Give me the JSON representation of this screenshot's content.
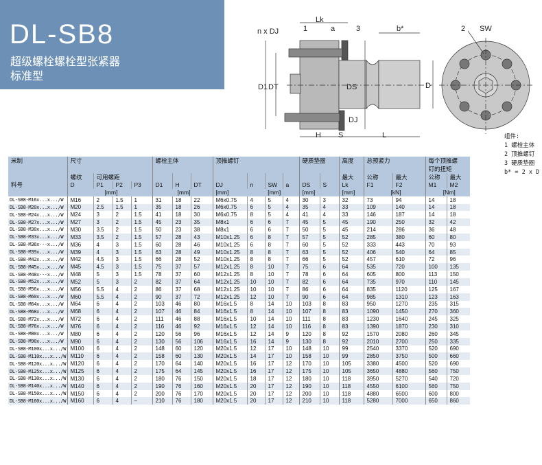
{
  "header": {
    "title": "DL-SB8",
    "subtitle1": "超级螺栓螺栓型张紧器",
    "subtitle2": "标准型",
    "accent": "#6d91b6"
  },
  "drawing": {
    "labels": {
      "lk": "Lk",
      "n_dj": "n x DJ",
      "one": "1",
      "a": "a",
      "three": "3",
      "bstar": "b*",
      "d1": "D1",
      "dt": "DT",
      "ds": "DS",
      "d": "D",
      "dj": "DJ",
      "h": "H",
      "s": "S",
      "l": "L",
      "two": "2",
      "sw": "SW"
    }
  },
  "legend": {
    "title": "组件:",
    "items": [
      "1 螺栓主体",
      "2 顶推螺钉",
      "3 硬质垫圈",
      "b* = 2 x D"
    ]
  },
  "table": {
    "groups": {
      "metric": "米制",
      "size": "尺寸",
      "body": "螺栓主体",
      "push": "顶推螺钉",
      "washer": "硬质垫圈",
      "height": "高度",
      "force": "总预紧力",
      "torque1": "每个顶推螺",
      "torque2": "钉的扭矩"
    },
    "sub": {
      "part": "料号",
      "thread": "螺纹",
      "pitch": "可用螺距",
      "max": "最大",
      "nominal": "公称",
      "max2": "最大",
      "nom2": "公称",
      "max3": "最大"
    },
    "cols": [
      "D",
      "P1",
      "P2",
      "P3",
      "D1",
      "H",
      "DT",
      "DJ",
      "n",
      "SW",
      "a",
      "DS",
      "S",
      "Lk",
      "F1",
      "F2",
      "M1",
      "M2"
    ],
    "units": {
      "mm1": "[mm]",
      "mm2": "[mm]",
      "mm3": "[mm]",
      "mm4": "[mm]",
      "mm5": "[mm]",
      "mm6": "[mm]",
      "kn": "[kN]",
      "nm": "[Nm]"
    },
    "rows": [
      [
        "DL-SB8-M16x...x.../W",
        "M16",
        "2",
        "1.5",
        "1",
        "31",
        "18",
        "22",
        "M6x0.75",
        "4",
        "5",
        "4",
        "30",
        "3",
        "32",
        "73",
        "94",
        "14",
        "18"
      ],
      [
        "DL-SB8-M20x...x.../W",
        "M20",
        "2.5",
        "1.5",
        "1",
        "35",
        "18",
        "26",
        "M6x0.75",
        "6",
        "5",
        "4",
        "35",
        "4",
        "33",
        "109",
        "140",
        "14",
        "18"
      ],
      [
        "DL-SB8-M24x...x.../W",
        "M24",
        "3",
        "2",
        "1.5",
        "41",
        "18",
        "30",
        "M6x0.75",
        "8",
        "5",
        "4",
        "41",
        "4",
        "33",
        "146",
        "187",
        "14",
        "18"
      ],
      [
        "DL-SB8-M27x...x.../W",
        "M27",
        "3",
        "2",
        "1.5",
        "45",
        "23",
        "35",
        "M8x1",
        "6",
        "6",
        "7",
        "45",
        "5",
        "45",
        "190",
        "250",
        "32",
        "42"
      ],
      [
        "DL-SB8-M30x...x.../W",
        "M30",
        "3.5",
        "2",
        "1.5",
        "50",
        "23",
        "38",
        "M8x1",
        "6",
        "6",
        "7",
        "50",
        "5",
        "45",
        "214",
        "286",
        "36",
        "48"
      ],
      [
        "DL-SB8-M33x...x.../W",
        "M33",
        "3.5",
        "2",
        "1.5",
        "57",
        "28",
        "43",
        "M10x1.25",
        "6",
        "8",
        "7",
        "57",
        "5",
        "52",
        "285",
        "380",
        "60",
        "80"
      ],
      [
        "DL-SB8-M36x···x.../W",
        "M36",
        "4",
        "3",
        "1.5",
        "60",
        "28",
        "46",
        "M10x1.25",
        "6",
        "8",
        "7",
        "60",
        "5",
        "52",
        "333",
        "443",
        "70",
        "93"
      ],
      [
        "DL-SB8-M39x...x.../W",
        "M39",
        "4",
        "3",
        "1.5",
        "63",
        "28",
        "49",
        "M10x1.25",
        "8",
        "8",
        "7",
        "63",
        "5",
        "52",
        "406",
        "540",
        "64",
        "85"
      ],
      [
        "DL-SB8-M42x...x.../W",
        "M42",
        "4.5",
        "3",
        "1.5",
        "66",
        "28",
        "52",
        "M10x1.25",
        "8",
        "8",
        "7",
        "66",
        "5",
        "52",
        "457",
        "610",
        "72",
        "96"
      ],
      [
        "DL-SB8-M45x...x.../W",
        "M45",
        "4.5",
        "3",
        "1.5",
        "75",
        "37",
        "57",
        "M12x1.25",
        "8",
        "10",
        "7",
        "75",
        "6",
        "64",
        "535",
        "720",
        "100",
        "135"
      ],
      [
        "DL-SB8-M48x···x.../W",
        "M48",
        "5",
        "3",
        "1.5",
        "78",
        "37",
        "60",
        "M12x1.25",
        "8",
        "10",
        "7",
        "78",
        "6",
        "64",
        "605",
        "800",
        "113",
        "150"
      ],
      [
        "DL-SB8-M52x...x.../W",
        "M52",
        "5",
        "3",
        "2",
        "82",
        "37",
        "64",
        "M12x1.25",
        "10",
        "10",
        "7",
        "82",
        "6",
        "64",
        "735",
        "970",
        "110",
        "145"
      ],
      [
        "DL-SB8-M56x...x.../W",
        "M56",
        "5.5",
        "4",
        "2",
        "86",
        "37",
        "68",
        "M12x1.25",
        "10",
        "10",
        "7",
        "86",
        "6",
        "64",
        "835",
        "1120",
        "125",
        "167"
      ],
      [
        "DL-SB8-M60x...x.../W",
        "M60",
        "5.5",
        "4",
        "2",
        "90",
        "37",
        "72",
        "M12x1.25",
        "12",
        "10",
        "7",
        "90",
        "6",
        "64",
        "985",
        "1310",
        "123",
        "163"
      ],
      [
        "DL-SB8-M64x...x.../W",
        "M64",
        "6",
        "4",
        "2",
        "103",
        "46",
        "80",
        "M16x1.5",
        "8",
        "14",
        "10",
        "103",
        "8",
        "83",
        "950",
        "1270",
        "235",
        "315"
      ],
      [
        "DL-SB8-M68x...x.../W",
        "M68",
        "6",
        "4",
        "2",
        "107",
        "46",
        "84",
        "M16x1.5",
        "8",
        "14",
        "10",
        "107",
        "8",
        "83",
        "1090",
        "1450",
        "270",
        "360"
      ],
      [
        "DL-SB8-M72x...x.../W",
        "M72",
        "6",
        "4",
        "2",
        "111",
        "46",
        "88",
        "M16x1.5",
        "10",
        "14",
        "10",
        "111",
        "8",
        "83",
        "1230",
        "1640",
        "245",
        "325"
      ],
      [
        "DL-SB8-M76x...x.../W",
        "M76",
        "6",
        "4",
        "2",
        "116",
        "46",
        "92",
        "M16x1.5",
        "12",
        "14",
        "10",
        "116",
        "8",
        "83",
        "1390",
        "1870",
        "230",
        "310"
      ],
      [
        "DL-SB8-M80x...x.../W",
        "M80",
        "6",
        "4",
        "2",
        "120",
        "56",
        "96",
        "M16x1.5",
        "12",
        "14",
        "9",
        "120",
        "8",
        "92",
        "1570",
        "2080",
        "260",
        "345"
      ],
      [
        "DL-SB8-M90x...x.../W",
        "M90",
        "6",
        "4",
        "2",
        "130",
        "56",
        "106",
        "M16x1.5",
        "16",
        "14",
        "9",
        "130",
        "8",
        "92",
        "2010",
        "2700",
        "250",
        "335"
      ],
      [
        "DL-SB8-M100x...x.../W",
        "M100",
        "6",
        "4",
        "2",
        "148",
        "60",
        "120",
        "M20x1.5",
        "12",
        "17",
        "10",
        "148",
        "10",
        "99",
        "2540",
        "3370",
        "520",
        "690"
      ],
      [
        "DL-SB8-M110x...x.../W",
        "M110",
        "6",
        "4",
        "2",
        "158",
        "60",
        "130",
        "M20x1.5",
        "14",
        "17",
        "10",
        "158",
        "10",
        "99",
        "2850",
        "3750",
        "500",
        "660"
      ],
      [
        "DL-SB8-M120x...x.../W",
        "M120",
        "6",
        "4",
        "2",
        "170",
        "64",
        "140",
        "M20x1.5",
        "16",
        "17",
        "12",
        "170",
        "10",
        "105",
        "3380",
        "4500",
        "520",
        "690"
      ],
      [
        "DL-SB8-M125x...x.../W",
        "M125",
        "6",
        "4",
        "2",
        "175",
        "64",
        "145",
        "M20x1.5",
        "16",
        "17",
        "12",
        "175",
        "10",
        "105",
        "3650",
        "4880",
        "560",
        "750"
      ],
      [
        "DL-SB8-M130x...x.../W",
        "M130",
        "6",
        "4",
        "2",
        "180",
        "76",
        "150",
        "M20x1.5",
        "18",
        "17",
        "12",
        "180",
        "10",
        "118",
        "3950",
        "5270",
        "540",
        "720"
      ],
      [
        "DL-SB8-M140x...x.../W",
        "M140",
        "6",
        "4",
        "2",
        "190",
        "76",
        "160",
        "M20x1.5",
        "20",
        "17",
        "12",
        "190",
        "10",
        "118",
        "4550",
        "6100",
        "560",
        "750"
      ],
      [
        "DL-SB8-M150x...x.../W",
        "M150",
        "6",
        "4",
        "2",
        "200",
        "76",
        "170",
        "M20x1.5",
        "20",
        "17",
        "12",
        "200",
        "10",
        "118",
        "4880",
        "6500",
        "600",
        "800"
      ],
      [
        "DL-SB8-M160x...x.../W",
        "M160",
        "6",
        "4",
        "–",
        "210",
        "76",
        "180",
        "M20x1.5",
        "20",
        "17",
        "12",
        "210",
        "10",
        "118",
        "5280",
        "7000",
        "650",
        "860"
      ]
    ]
  }
}
